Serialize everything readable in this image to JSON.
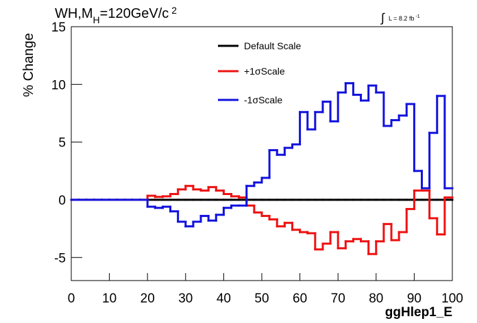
{
  "chart_data": {
    "type": "histogram",
    "title": {
      "main": "WH,M",
      "sub": "H",
      "rest": "=120GeV/c",
      "sup": "2"
    },
    "lumi": {
      "text": "L = 8.2 fb",
      "sup": "-1"
    },
    "x_label": "ggHlep1_E",
    "y_label": "% Change",
    "bins": [
      0,
      2,
      4,
      6,
      8,
      10,
      12,
      14,
      16,
      18,
      20,
      22,
      24,
      26,
      28,
      30,
      32,
      34,
      36,
      38,
      40,
      42,
      44,
      46,
      48,
      50,
      52,
      54,
      56,
      58,
      60,
      62,
      64,
      66,
      68,
      70,
      72,
      74,
      76,
      78,
      80,
      82,
      84,
      86,
      88,
      90,
      92,
      94,
      96,
      98,
      100
    ],
    "series": [
      {
        "name": "Default Scale",
        "color": "#000000",
        "values": [
          0,
          0,
          0,
          0,
          0,
          0,
          0,
          0,
          0,
          0,
          0,
          0,
          0,
          0,
          0,
          0,
          0,
          0,
          0,
          0,
          0,
          0,
          0,
          0,
          0,
          0,
          0,
          0,
          0,
          0,
          0,
          0,
          0,
          0,
          0,
          0,
          0,
          0,
          0,
          0,
          0,
          0,
          0,
          0,
          0,
          0,
          0,
          0,
          0,
          0
        ]
      },
      {
        "name": "+1σScale",
        "color": "#ee1111",
        "values": [
          0,
          0,
          0,
          0,
          0,
          0,
          0,
          0,
          0,
          0,
          0.35,
          0.25,
          0.3,
          0.5,
          0.9,
          1.2,
          0.9,
          0.8,
          1.1,
          0.8,
          0.5,
          0.3,
          0.2,
          -0.5,
          -1.1,
          -1.4,
          -1.7,
          -2.3,
          -2.0,
          -2.6,
          -2.8,
          -2.9,
          -4.3,
          -3.8,
          -2.8,
          -4.2,
          -3.6,
          -3.4,
          -3.6,
          -4.7,
          -3.6,
          -2.1,
          -3.5,
          -2.8,
          -0.8,
          0.8,
          0.8,
          -1.6,
          -3.0,
          0.2
        ]
      },
      {
        "name": "-1σScale",
        "color": "#1111dd",
        "values": [
          0,
          0,
          0,
          0,
          0,
          0,
          0,
          0,
          0,
          0,
          -0.6,
          -0.7,
          -0.6,
          -1.0,
          -1.9,
          -2.3,
          -1.9,
          -1.4,
          -1.8,
          -1.3,
          -0.7,
          -0.5,
          -0.5,
          1.2,
          1.5,
          1.9,
          4.3,
          3.9,
          4.5,
          4.8,
          7.6,
          6.1,
          7.6,
          8.5,
          6.8,
          9.3,
          10.1,
          9.1,
          8.6,
          9.9,
          9.3,
          6.4,
          6.9,
          7.3,
          8.3,
          2.5,
          1.0,
          5.8,
          9.0,
          1.0
        ]
      }
    ],
    "xlim": [
      0,
      100
    ],
    "ylim": [
      -7,
      15
    ],
    "xticks": [
      0,
      10,
      20,
      30,
      40,
      50,
      60,
      70,
      80,
      90,
      100
    ],
    "yticks": [
      -5,
      0,
      5,
      10,
      15
    ]
  }
}
